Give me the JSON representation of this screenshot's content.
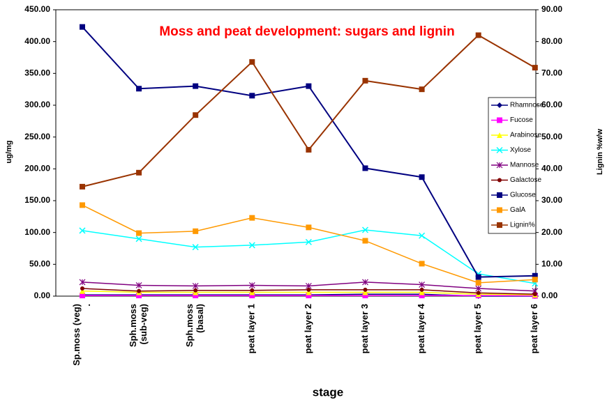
{
  "chart_data": {
    "type": "line",
    "title": "Moss and peat development: sugars and lignin",
    "x_label": "stage",
    "y_label": "ug/mg",
    "y2_label": "Lignin %w/w",
    "categories": [
      [
        "Sp.moss (veg)",
        "."
      ],
      [
        "Sph.moss",
        "(sub-veg)"
      ],
      [
        "Sph.moss",
        "(basal)"
      ],
      [
        "peat layer 1"
      ],
      [
        "peat layer 2"
      ],
      [
        "peat layer 3"
      ],
      [
        "peat layer 4"
      ],
      [
        "peat layer 5"
      ],
      [
        "peat layer 6"
      ]
    ],
    "ylim": [
      0,
      450
    ],
    "yticks": [
      {
        "value": 0,
        "label": "0.00"
      },
      {
        "value": 50,
        "label": "50.00"
      },
      {
        "value": 100,
        "label": "100.00"
      },
      {
        "value": 150,
        "label": "150.00"
      },
      {
        "value": 200,
        "label": "200.00"
      },
      {
        "value": 250,
        "label": "250.00"
      },
      {
        "value": 300,
        "label": "300.00"
      },
      {
        "value": 350,
        "label": "350.00"
      },
      {
        "value": 400,
        "label": "400.00"
      },
      {
        "value": 450,
        "label": "450.00"
      }
    ],
    "y2lim": [
      0,
      90
    ],
    "y2ticks": [
      {
        "value": 0,
        "label": "0.00"
      },
      {
        "value": 10,
        "label": "10.00"
      },
      {
        "value": 20,
        "label": "20.00"
      },
      {
        "value": 30,
        "label": "30.00"
      },
      {
        "value": 40,
        "label": "40.00"
      },
      {
        "value": 50,
        "label": "50.00"
      },
      {
        "value": 60,
        "label": "60.00"
      },
      {
        "value": 70,
        "label": "70.00"
      },
      {
        "value": 80,
        "label": "80.00"
      },
      {
        "value": 90,
        "label": "90.00"
      }
    ],
    "series": [
      {
        "name": "Rhamnose",
        "color": "#000080",
        "marker": "diamond",
        "values": [
          2,
          2,
          2,
          2,
          2,
          3,
          3,
          0,
          0
        ]
      },
      {
        "name": "Fucose",
        "color": "#ff00ff",
        "marker": "square",
        "values": [
          1,
          1,
          1,
          1,
          1,
          1,
          1,
          1,
          0.5
        ]
      },
      {
        "name": "Arabinose",
        "color": "#ffff00",
        "marker": "triangle",
        "values": [
          8,
          6,
          6,
          6,
          6,
          6,
          6,
          3,
          2
        ]
      },
      {
        "name": "Xylose",
        "color": "#00ffff",
        "marker": "cross",
        "values": [
          103,
          90,
          77,
          80,
          85,
          104,
          95,
          35,
          20
        ]
      },
      {
        "name": "Mannose",
        "color": "#800080",
        "marker": "star",
        "values": [
          22,
          17,
          16,
          17,
          16,
          22,
          18,
          12,
          8
        ]
      },
      {
        "name": "Galactose",
        "color": "#800000",
        "marker": "circle",
        "values": [
          12,
          8,
          9,
          9,
          10,
          10,
          10,
          5,
          3
        ]
      },
      {
        "name": "Glucose",
        "color": "#000080",
        "marker": "square",
        "values": [
          423,
          326,
          330,
          315,
          330,
          201,
          187,
          30,
          32
        ]
      },
      {
        "name": "GalA",
        "color": "#ff9900",
        "marker": "square",
        "values": [
          143,
          99,
          102,
          123,
          108,
          87,
          51,
          21,
          26
        ]
      },
      {
        "name": "Lignin%",
        "color": "#993300",
        "marker": "square",
        "axis": "y2",
        "values": [
          34.4,
          38.8,
          56.9,
          73.6,
          46,
          67.7,
          65,
          82,
          71.8
        ]
      }
    ]
  }
}
